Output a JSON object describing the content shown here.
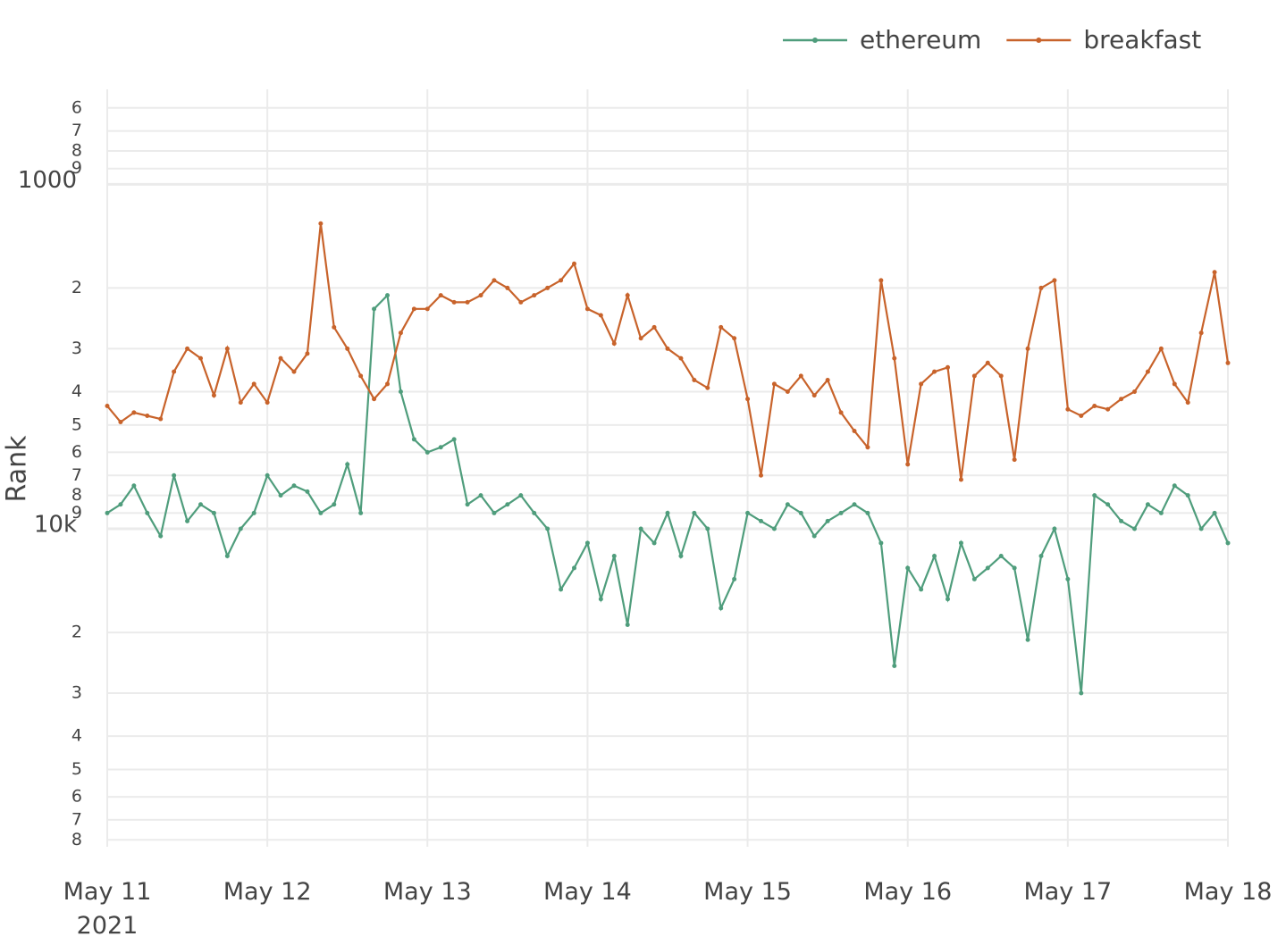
{
  "chart_data": {
    "type": "line",
    "y_label": "Rank",
    "log_y": true,
    "grid": true,
    "legend": "top-right",
    "xlim": [
      "2021-05-11T00:00",
      "2021-05-18T00:00"
    ],
    "xticks": [
      {
        "value": "2021-05-11T00:00",
        "label": "May 11\n2021"
      },
      {
        "value": "2021-05-12T00:00",
        "label": "May 12"
      },
      {
        "value": "2021-05-13T00:00",
        "label": "May 13"
      },
      {
        "value": "2021-05-14T00:00",
        "label": "May 14"
      },
      {
        "value": "2021-05-15T00:00",
        "label": "May 15"
      },
      {
        "value": "2021-05-16T00:00",
        "label": "May 16"
      },
      {
        "value": "2021-05-17T00:00",
        "label": "May 17"
      },
      {
        "value": "2021-05-18T00:00",
        "label": "May 18"
      }
    ],
    "ylim": [
      90000,
      530
    ],
    "yticks": [
      {
        "value": 600,
        "label": "6"
      },
      {
        "value": 700,
        "label": "7"
      },
      {
        "value": 800,
        "label": "8"
      },
      {
        "value": 900,
        "label": "9"
      },
      1000,
      {
        "value": 2000,
        "label": "2"
      },
      {
        "value": 3000,
        "label": "3"
      },
      {
        "value": 4000,
        "label": "4"
      },
      {
        "value": 5000,
        "label": "5"
      },
      {
        "value": 6000,
        "label": "6"
      },
      {
        "value": 7000,
        "label": "7"
      },
      {
        "value": 8000,
        "label": "8"
      },
      {
        "value": 9000,
        "label": "9"
      },
      {
        "value": 10000,
        "label": "10k"
      },
      {
        "value": 20000,
        "label": "2"
      },
      {
        "value": 30000,
        "label": "3"
      },
      {
        "value": 40000,
        "label": "4"
      },
      {
        "value": 50000,
        "label": "5"
      },
      {
        "value": 60000,
        "label": "6"
      },
      {
        "value": 70000,
        "label": "7"
      },
      {
        "value": 80000,
        "label": "8"
      }
    ],
    "x": [
      "2021-05-11T00:00",
      "2021-05-11T02:00",
      "2021-05-11T04:00",
      "2021-05-11T06:00",
      "2021-05-11T08:00",
      "2021-05-11T10:00",
      "2021-05-11T12:00",
      "2021-05-11T14:00",
      "2021-05-11T16:00",
      "2021-05-11T18:00",
      "2021-05-11T20:00",
      "2021-05-11T22:00",
      "2021-05-12T00:00",
      "2021-05-12T02:00",
      "2021-05-12T04:00",
      "2021-05-12T06:00",
      "2021-05-12T08:00",
      "2021-05-12T10:00",
      "2021-05-12T12:00",
      "2021-05-12T14:00",
      "2021-05-12T16:00",
      "2021-05-12T18:00",
      "2021-05-12T20:00",
      "2021-05-12T22:00",
      "2021-05-13T00:00",
      "2021-05-13T02:00",
      "2021-05-13T04:00",
      "2021-05-13T06:00",
      "2021-05-13T08:00",
      "2021-05-13T10:00",
      "2021-05-13T12:00",
      "2021-05-13T14:00",
      "2021-05-13T16:00",
      "2021-05-13T18:00",
      "2021-05-13T20:00",
      "2021-05-13T22:00",
      "2021-05-14T00:00",
      "2021-05-14T02:00",
      "2021-05-14T04:00",
      "2021-05-14T06:00",
      "2021-05-14T08:00",
      "2021-05-14T10:00",
      "2021-05-14T12:00",
      "2021-05-14T14:00",
      "2021-05-14T16:00",
      "2021-05-14T18:00",
      "2021-05-14T20:00",
      "2021-05-14T22:00",
      "2021-05-15T00:00",
      "2021-05-15T02:00",
      "2021-05-15T04:00",
      "2021-05-15T06:00",
      "2021-05-15T08:00",
      "2021-05-15T10:00",
      "2021-05-15T12:00",
      "2021-05-15T14:00",
      "2021-05-15T16:00",
      "2021-05-15T18:00",
      "2021-05-15T20:00",
      "2021-05-15T22:00",
      "2021-05-16T00:00",
      "2021-05-16T02:00",
      "2021-05-16T04:00",
      "2021-05-16T06:00",
      "2021-05-16T08:00",
      "2021-05-16T10:00",
      "2021-05-16T12:00",
      "2021-05-16T14:00",
      "2021-05-16T16:00",
      "2021-05-16T18:00",
      "2021-05-16T20:00",
      "2021-05-16T22:00",
      "2021-05-17T00:00",
      "2021-05-17T02:00",
      "2021-05-17T04:00",
      "2021-05-17T06:00",
      "2021-05-17T08:00",
      "2021-05-17T10:00",
      "2021-05-17T12:00",
      "2021-05-17T14:00",
      "2021-05-17T16:00",
      "2021-05-17T18:00",
      "2021-05-17T20:00",
      "2021-05-17T22:00",
      "2021-05-18T00:00"
    ],
    "series": [
      {
        "name": "ethereum",
        "color": "#4f9d7c",
        "values": [
          9000,
          8500,
          7500,
          9000,
          10500,
          7000,
          9500,
          8500,
          9000,
          12000,
          10000,
          9000,
          7000,
          8000,
          7500,
          7800,
          9000,
          8500,
          6500,
          9000,
          2300,
          2100,
          4000,
          5500,
          6000,
          5800,
          5500,
          8500,
          8000,
          9000,
          8500,
          8000,
          9000,
          10000,
          15000,
          13000,
          11000,
          16000,
          12000,
          19000,
          10000,
          11000,
          9000,
          12000,
          9000,
          10000,
          17000,
          14000,
          9000,
          9500,
          10000,
          8500,
          9000,
          10500,
          9500,
          9000,
          8500,
          9000,
          11000,
          25000,
          13000,
          15000,
          12000,
          16000,
          11000,
          14000,
          13000,
          12000,
          13000,
          21000,
          12000,
          10000,
          14000,
          30000,
          8000,
          8500,
          9500,
          10000,
          8500,
          9000,
          7500,
          8000,
          10000,
          9000,
          11000
        ]
      },
      {
        "name": "breakfast",
        "color": "#c8632b",
        "values": [
          4400,
          4900,
          4600,
          4700,
          4800,
          3500,
          3000,
          3200,
          4100,
          3000,
          4300,
          3800,
          4300,
          3200,
          3500,
          3100,
          1300,
          2600,
          3000,
          3600,
          4200,
          3800,
          2700,
          2300,
          2300,
          2100,
          2200,
          2200,
          2100,
          1900,
          2000,
          2200,
          2100,
          2000,
          1900,
          1700,
          2300,
          2400,
          2900,
          2100,
          2800,
          2600,
          3000,
          3200,
          3700,
          3900,
          2600,
          2800,
          4200,
          7000,
          3800,
          4000,
          3600,
          4100,
          3700,
          4600,
          5200,
          5800,
          1900,
          3200,
          6500,
          3800,
          3500,
          3400,
          7200,
          3600,
          3300,
          3600,
          6300,
          3000,
          2000,
          1900,
          4500,
          4700,
          4400,
          4500,
          4200,
          4000,
          3500,
          3000,
          3800,
          4300,
          2700,
          1800,
          3300
        ]
      }
    ]
  }
}
